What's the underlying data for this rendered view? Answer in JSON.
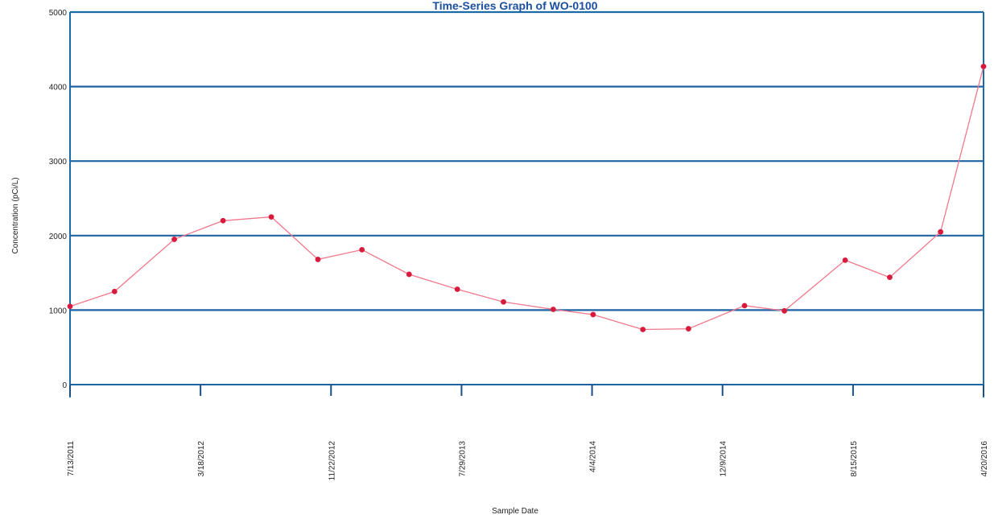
{
  "chart_data": {
    "type": "line",
    "title": "Time-Series Graph of WO-0100",
    "xlabel": "Sample Date",
    "ylabel": "Concentration (pCi/L)",
    "ylim": [
      0,
      5000
    ],
    "yticks": [
      0,
      1000,
      2000,
      3000,
      4000,
      5000
    ],
    "xlim": [
      "2011-07-13",
      "2016-04-20"
    ],
    "xticks": [
      {
        "date": "2011-07-13",
        "label": "7/13/2011"
      },
      {
        "date": "2012-03-18",
        "label": "3/18/2012"
      },
      {
        "date": "2012-11-22",
        "label": "11/22/2012"
      },
      {
        "date": "2013-07-29",
        "label": "7/29/2013"
      },
      {
        "date": "2014-04-04",
        "label": "4/4/2014"
      },
      {
        "date": "2014-12-09",
        "label": "12/9/2014"
      },
      {
        "date": "2015-08-15",
        "label": "8/15/2015"
      },
      {
        "date": "2016-04-20",
        "label": "4/20/2016"
      }
    ],
    "grid": true,
    "series": [
      {
        "x": [
          "2011-07-13",
          "2011-10-06",
          "2012-01-28",
          "2012-04-30",
          "2012-07-31",
          "2012-10-28",
          "2013-01-20",
          "2013-04-20",
          "2013-07-21",
          "2013-10-17",
          "2014-01-20",
          "2014-04-06",
          "2014-07-10",
          "2014-10-05",
          "2015-01-20",
          "2015-04-06",
          "2015-07-31",
          "2015-10-24",
          "2016-01-29",
          "2016-04-20"
        ],
        "values": [
          1050,
          1250,
          1950,
          2200,
          2250,
          1680,
          1810,
          1480,
          1280,
          1110,
          1010,
          940,
          740,
          750,
          1060,
          990,
          1670,
          1440,
          2050,
          4270
        ]
      }
    ],
    "colors": {
      "line": "#f0788c",
      "marker": "#d81b3c",
      "axis": "#1a6aa8",
      "grid": "#1f63a3",
      "title": "#1b4fa0"
    }
  }
}
